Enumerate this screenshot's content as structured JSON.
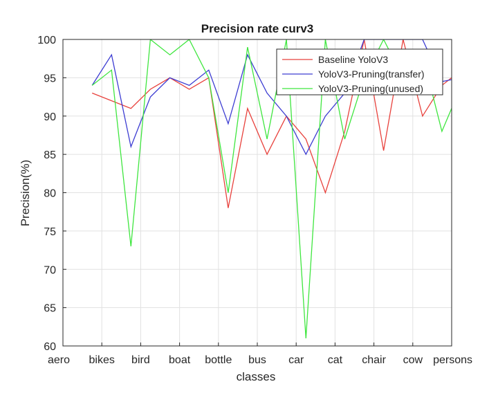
{
  "chart_data": {
    "type": "line",
    "title": "Precision rate curv3",
    "xlabel": "classes",
    "ylabel": "Precision(%)",
    "categories": [
      "aero",
      "bikes",
      "bird",
      "boat",
      "bottle",
      "bus",
      "car",
      "cat",
      "chair",
      "cow",
      "persons"
    ],
    "xlim": [
      1,
      11
    ],
    "ylim": [
      60,
      100
    ],
    "yticks": [
      60,
      65,
      70,
      75,
      80,
      85,
      90,
      95,
      100
    ],
    "grid": true,
    "legend_position": "top-right",
    "x": [
      1.75,
      2.25,
      2.75,
      3.25,
      3.75,
      4.25,
      4.75,
      5.25,
      5.75,
      6.25,
      6.75,
      7.25,
      7.75,
      8.25,
      8.75,
      9.25,
      9.75,
      10.25,
      10.75,
      11.25
    ],
    "series": [
      {
        "name": "Baseline YoloV3",
        "color": "#e8413c",
        "values": [
          93,
          92,
          91,
          93.5,
          95,
          93.5,
          95,
          78,
          91,
          85,
          90,
          87,
          80,
          88,
          100,
          85.5,
          100,
          90,
          94,
          96
        ]
      },
      {
        "name": "YoloV3-Pruning(transfer)",
        "color": "#3c3cd2",
        "values": [
          94,
          98,
          86,
          92.5,
          95,
          94,
          96,
          89,
          98,
          93,
          90,
          85,
          90,
          93,
          100,
          100,
          100,
          100,
          94.5,
          95
        ]
      },
      {
        "name": "YoloV3-Pruning(unused)",
        "color": "#3ee63e",
        "values": [
          94,
          96,
          73,
          100,
          98,
          100,
          95,
          80,
          99,
          87,
          100,
          61,
          100,
          87,
          95,
          100,
          95,
          98,
          88,
          94
        ]
      }
    ]
  }
}
